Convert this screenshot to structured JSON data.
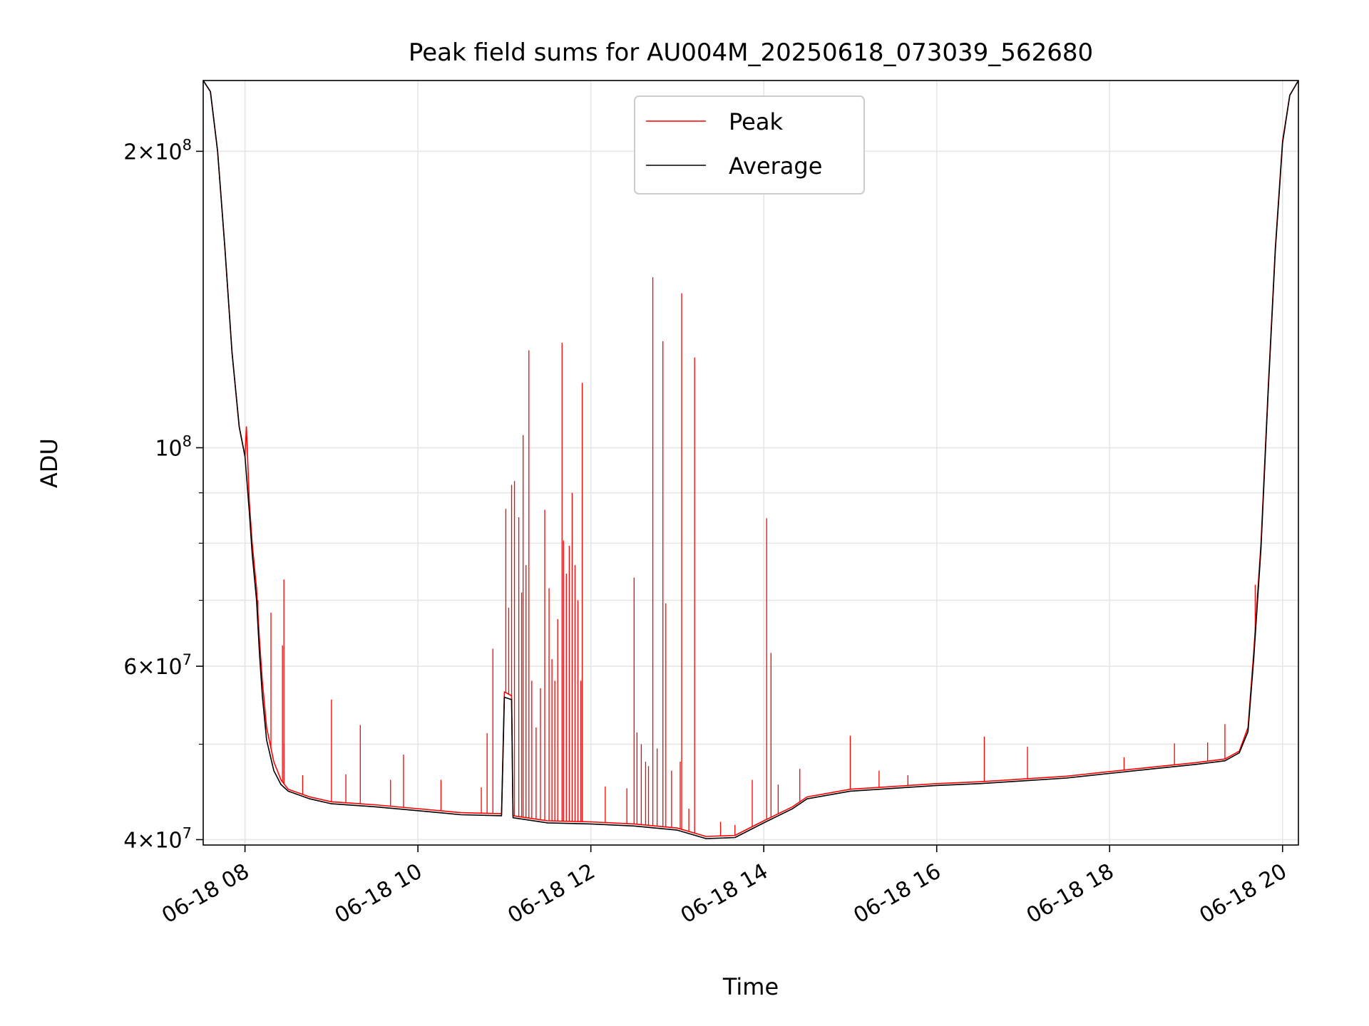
{
  "chart_data": {
    "type": "line",
    "title": "Peak field sums for AU004M_20250618_073039_562680",
    "xlabel": "Time",
    "ylabel": "ADU",
    "x_axis": {
      "kind": "datetime",
      "range": [
        "2025-06-18T07:31",
        "2025-06-18T20:11"
      ]
    },
    "y_axis": {
      "scale": "log",
      "range": [
        39500000,
        236000000
      ]
    },
    "x_ticks": [
      {
        "value": "2025-06-18T08:00",
        "label": "06-18 08"
      },
      {
        "value": "2025-06-18T10:00",
        "label": "06-18 10"
      },
      {
        "value": "2025-06-18T12:00",
        "label": "06-18 12"
      },
      {
        "value": "2025-06-18T14:00",
        "label": "06-18 14"
      },
      {
        "value": "2025-06-18T16:00",
        "label": "06-18 16"
      },
      {
        "value": "2025-06-18T18:00",
        "label": "06-18 18"
      },
      {
        "value": "2025-06-18T20:00",
        "label": "06-18 20"
      }
    ],
    "y_major_ticks": [
      {
        "value": 40000000,
        "mantissa": "4",
        "exponent": "7"
      },
      {
        "value": 60000000,
        "mantissa": "6",
        "exponent": "7"
      },
      {
        "value": 100000000,
        "mantissa": "",
        "exponent": "8"
      },
      {
        "value": 200000000,
        "mantissa": "2",
        "exponent": "8"
      }
    ],
    "y_minor_ticks": [
      50000000,
      70000000,
      80000000,
      90000000
    ],
    "grid": true,
    "legend": {
      "placement": "top-center"
    },
    "series": [
      {
        "name": "Peak",
        "color": "#ff0000",
        "points": [
          [
            "2025-06-18T07:31",
            236000000
          ],
          [
            "2025-06-18T07:36",
            230000000
          ],
          [
            "2025-06-18T07:41",
            200000000
          ],
          [
            "2025-06-18T07:46",
            160000000
          ],
          [
            "2025-06-18T07:51",
            125000000
          ],
          [
            "2025-06-18T07:56",
            105000000
          ],
          [
            "2025-06-18T08:00",
            98000000
          ],
          [
            "2025-06-18T08:01",
            105000000
          ],
          [
            "2025-06-18T08:03",
            88000000
          ],
          [
            "2025-06-18T08:05",
            80000000
          ],
          [
            "2025-06-18T08:08",
            72000000
          ],
          [
            "2025-06-18T08:10",
            64000000
          ],
          [
            "2025-06-18T08:12",
            58000000
          ],
          [
            "2025-06-18T08:15",
            52000000
          ],
          [
            "2025-06-18T08:20",
            48000000
          ],
          [
            "2025-06-18T08:25",
            46000000
          ],
          [
            "2025-06-18T08:30",
            45000000
          ],
          [
            "2025-06-18T08:45",
            44200000
          ],
          [
            "2025-06-18T09:00",
            43700000
          ],
          [
            "2025-06-18T09:30",
            43400000
          ],
          [
            "2025-06-18T10:00",
            43000000
          ],
          [
            "2025-06-18T10:30",
            42600000
          ],
          [
            "2025-06-18T10:58",
            42500000
          ],
          [
            "2025-06-18T11:00",
            56500000
          ],
          [
            "2025-06-18T11:05",
            56000000
          ],
          [
            "2025-06-18T11:06",
            42300000
          ],
          [
            "2025-06-18T11:30",
            41800000
          ],
          [
            "2025-06-18T12:00",
            41700000
          ],
          [
            "2025-06-18T12:30",
            41500000
          ],
          [
            "2025-06-18T13:00",
            41100000
          ],
          [
            "2025-06-18T13:20",
            40300000
          ],
          [
            "2025-06-18T13:40",
            40400000
          ],
          [
            "2025-06-18T14:00",
            41800000
          ],
          [
            "2025-06-18T14:20",
            43200000
          ],
          [
            "2025-06-18T14:30",
            44200000
          ],
          [
            "2025-06-18T15:00",
            45000000
          ],
          [
            "2025-06-18T15:30",
            45300000
          ],
          [
            "2025-06-18T16:00",
            45600000
          ],
          [
            "2025-06-18T16:30",
            45800000
          ],
          [
            "2025-06-18T17:00",
            46100000
          ],
          [
            "2025-06-18T17:30",
            46400000
          ],
          [
            "2025-06-18T18:00",
            46900000
          ],
          [
            "2025-06-18T18:30",
            47400000
          ],
          [
            "2025-06-18T19:00",
            47900000
          ],
          [
            "2025-06-18T19:20",
            48300000
          ],
          [
            "2025-06-18T19:30",
            49200000
          ],
          [
            "2025-06-18T19:36",
            52000000
          ],
          [
            "2025-06-18T19:40",
            62000000
          ],
          [
            "2025-06-18T19:45",
            80000000
          ],
          [
            "2025-06-18T19:50",
            115000000
          ],
          [
            "2025-06-18T19:55",
            160000000
          ],
          [
            "2025-06-18T20:00",
            205000000
          ],
          [
            "2025-06-18T20:05",
            228000000
          ],
          [
            "2025-06-18T20:11",
            236000000
          ]
        ],
        "spikes": [
          [
            "2025-06-18T08:09",
            70000000
          ],
          [
            "2025-06-18T08:18",
            68000000
          ],
          [
            "2025-06-18T08:26",
            63000000
          ],
          [
            "2025-06-18T08:27",
            50000000
          ],
          [
            "2025-06-18T08:27",
            73500000
          ],
          [
            "2025-06-18T08:40",
            46500000
          ],
          [
            "2025-06-18T09:00",
            55500000
          ],
          [
            "2025-06-18T09:10",
            46600000
          ],
          [
            "2025-06-18T09:20",
            52300000
          ],
          [
            "2025-06-18T09:41",
            46000000
          ],
          [
            "2025-06-18T09:50",
            48800000
          ],
          [
            "2025-06-18T10:16",
            46000000
          ],
          [
            "2025-06-18T10:44",
            45200000
          ],
          [
            "2025-06-18T10:48",
            51300000
          ],
          [
            "2025-06-18T10:52",
            62500000
          ],
          [
            "2025-06-18T11:01",
            86700000
          ],
          [
            "2025-06-18T11:03",
            68800000
          ],
          [
            "2025-06-18T11:05",
            91700000
          ],
          [
            "2025-06-18T11:07",
            92500000
          ],
          [
            "2025-06-18T11:10",
            85000000
          ],
          [
            "2025-06-18T11:12",
            71300000
          ],
          [
            "2025-06-18T11:13",
            103000000
          ],
          [
            "2025-06-18T11:15",
            76000000
          ],
          [
            "2025-06-18T11:17",
            125600000
          ],
          [
            "2025-06-18T11:19",
            58000000
          ],
          [
            "2025-06-18T11:22",
            52000000
          ],
          [
            "2025-06-18T11:25",
            57000000
          ],
          [
            "2025-06-18T11:28",
            86500000
          ],
          [
            "2025-06-18T11:31",
            72000000
          ],
          [
            "2025-06-18T11:33",
            61000000
          ],
          [
            "2025-06-18T11:35",
            58000000
          ],
          [
            "2025-06-18T11:37",
            67000000
          ],
          [
            "2025-06-18T11:40",
            127800000
          ],
          [
            "2025-06-18T11:41",
            80500000
          ],
          [
            "2025-06-18T11:43",
            74500000
          ],
          [
            "2025-06-18T11:45",
            79500000
          ],
          [
            "2025-06-18T11:47",
            90000000
          ],
          [
            "2025-06-18T11:49",
            76000000
          ],
          [
            "2025-06-18T11:51",
            70000000
          ],
          [
            "2025-06-18T11:53",
            58000000
          ],
          [
            "2025-06-18T11:54",
            116400000
          ],
          [
            "2025-06-18T12:10",
            45300000
          ],
          [
            "2025-06-18T12:25",
            45100000
          ],
          [
            "2025-06-18T12:30",
            73800000
          ],
          [
            "2025-06-18T12:32",
            51400000
          ],
          [
            "2025-06-18T12:35",
            50000000
          ],
          [
            "2025-06-18T12:38",
            48000000
          ],
          [
            "2025-06-18T12:40",
            47500000
          ],
          [
            "2025-06-18T12:43",
            149000000
          ],
          [
            "2025-06-18T12:46",
            49500000
          ],
          [
            "2025-06-18T12:50",
            128300000
          ],
          [
            "2025-06-18T12:52",
            69500000
          ],
          [
            "2025-06-18T12:56",
            47000000
          ],
          [
            "2025-06-18T13:02",
            48000000
          ],
          [
            "2025-06-18T13:03",
            143500000
          ],
          [
            "2025-06-18T13:08",
            43000000
          ],
          [
            "2025-06-18T13:12",
            123500000
          ],
          [
            "2025-06-18T13:30",
            41700000
          ],
          [
            "2025-06-18T13:40",
            41400000
          ],
          [
            "2025-06-18T13:52",
            46000000
          ],
          [
            "2025-06-18T14:02",
            84800000
          ],
          [
            "2025-06-18T14:05",
            61900000
          ],
          [
            "2025-06-18T14:10",
            45500000
          ],
          [
            "2025-06-18T14:25",
            47200000
          ],
          [
            "2025-06-18T15:00",
            51000000
          ],
          [
            "2025-06-18T15:20",
            47000000
          ],
          [
            "2025-06-18T15:40",
            46500000
          ],
          [
            "2025-06-18T16:33",
            50900000
          ],
          [
            "2025-06-18T17:03",
            49700000
          ],
          [
            "2025-06-18T18:10",
            48500000
          ],
          [
            "2025-06-18T18:45",
            50100000
          ],
          [
            "2025-06-18T19:08",
            50200000
          ],
          [
            "2025-06-18T19:20",
            52400000
          ],
          [
            "2025-06-18T19:41",
            72600000
          ]
        ]
      },
      {
        "name": "Average",
        "color": "#000000",
        "points": [
          [
            "2025-06-18T07:31",
            236000000
          ],
          [
            "2025-06-18T07:36",
            230000000
          ],
          [
            "2025-06-18T07:41",
            200000000
          ],
          [
            "2025-06-18T07:46",
            160000000
          ],
          [
            "2025-06-18T07:51",
            125000000
          ],
          [
            "2025-06-18T07:56",
            105000000
          ],
          [
            "2025-06-18T08:00",
            98000000
          ],
          [
            "2025-06-18T08:03",
            86000000
          ],
          [
            "2025-06-18T08:05",
            78000000
          ],
          [
            "2025-06-18T08:08",
            70000000
          ],
          [
            "2025-06-18T08:10",
            62000000
          ],
          [
            "2025-06-18T08:12",
            56000000
          ],
          [
            "2025-06-18T08:15",
            50500000
          ],
          [
            "2025-06-18T08:20",
            47000000
          ],
          [
            "2025-06-18T08:25",
            45500000
          ],
          [
            "2025-06-18T08:30",
            44800000
          ],
          [
            "2025-06-18T08:45",
            44000000
          ],
          [
            "2025-06-18T09:00",
            43500000
          ],
          [
            "2025-06-18T09:30",
            43200000
          ],
          [
            "2025-06-18T10:00",
            42800000
          ],
          [
            "2025-06-18T10:30",
            42400000
          ],
          [
            "2025-06-18T10:58",
            42300000
          ],
          [
            "2025-06-18T11:00",
            55800000
          ],
          [
            "2025-06-18T11:05",
            55500000
          ],
          [
            "2025-06-18T11:06",
            42100000
          ],
          [
            "2025-06-18T11:30",
            41600000
          ],
          [
            "2025-06-18T12:00",
            41500000
          ],
          [
            "2025-06-18T12:30",
            41300000
          ],
          [
            "2025-06-18T13:00",
            40900000
          ],
          [
            "2025-06-18T13:20",
            40100000
          ],
          [
            "2025-06-18T13:40",
            40200000
          ],
          [
            "2025-06-18T14:00",
            41600000
          ],
          [
            "2025-06-18T14:20",
            43000000
          ],
          [
            "2025-06-18T14:30",
            44000000
          ],
          [
            "2025-06-18T15:00",
            44800000
          ],
          [
            "2025-06-18T15:30",
            45100000
          ],
          [
            "2025-06-18T16:00",
            45400000
          ],
          [
            "2025-06-18T16:30",
            45600000
          ],
          [
            "2025-06-18T17:00",
            45900000
          ],
          [
            "2025-06-18T17:30",
            46200000
          ],
          [
            "2025-06-18T18:00",
            46700000
          ],
          [
            "2025-06-18T18:30",
            47200000
          ],
          [
            "2025-06-18T19:00",
            47700000
          ],
          [
            "2025-06-18T19:20",
            48100000
          ],
          [
            "2025-06-18T19:30",
            49000000
          ],
          [
            "2025-06-18T19:36",
            51500000
          ],
          [
            "2025-06-18T19:40",
            61000000
          ],
          [
            "2025-06-18T19:45",
            79000000
          ],
          [
            "2025-06-18T19:50",
            114000000
          ],
          [
            "2025-06-18T19:55",
            159000000
          ],
          [
            "2025-06-18T20:00",
            204000000
          ],
          [
            "2025-06-18T20:05",
            228000000
          ],
          [
            "2025-06-18T20:11",
            236000000
          ]
        ]
      }
    ]
  }
}
